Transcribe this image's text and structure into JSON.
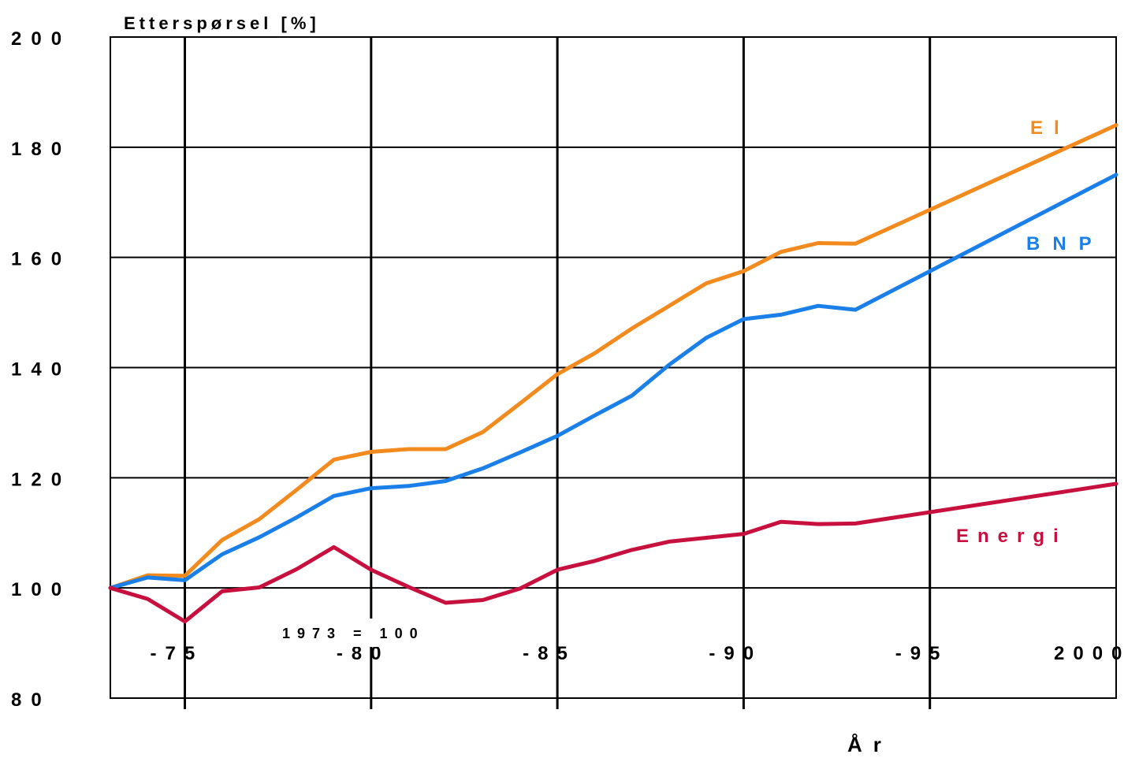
{
  "chart_data": {
    "type": "line",
    "title": "",
    "ylabel": "Etterspørsel [%]",
    "xlabel": "År",
    "annotation": "1973 = 100",
    "xlim": [
      1973,
      2000
    ],
    "ylim": [
      80,
      200
    ],
    "grid": true,
    "x_ticks": [
      1975,
      1980,
      1985,
      1990,
      1995,
      2000
    ],
    "x_tick_labels": [
      "-75",
      "-80",
      "-85",
      "-90",
      "-95",
      "2000"
    ],
    "y_ticks": [
      80,
      100,
      120,
      140,
      160,
      180,
      200
    ],
    "y_tick_labels": [
      "80",
      "100",
      "120",
      "140",
      "160",
      "180",
      "200"
    ],
    "x": [
      1973,
      1974,
      1975,
      1976,
      1977,
      1978,
      1979,
      1980,
      1981,
      1982,
      1983,
      1984,
      1985,
      1986,
      1987,
      1988,
      1989,
      1990,
      1991,
      1992,
      1993,
      2000
    ],
    "series": [
      {
        "name": "El",
        "color": "#F28A1E",
        "values": [
          100,
          102.3,
          102.2,
          108.7,
          112.5,
          117.8,
          123.3,
          124.7,
          125.2,
          125.2,
          128.3,
          133.5,
          138.8,
          142.6,
          147.1,
          151.2,
          155.3,
          157.5,
          161.0,
          162.6,
          162.5,
          184.0
        ]
      },
      {
        "name": "BNP",
        "color": "#1A7FE8",
        "values": [
          100,
          101.9,
          101.4,
          106.1,
          109.2,
          112.8,
          116.7,
          118.1,
          118.5,
          119.4,
          121.7,
          124.6,
          127.6,
          131.3,
          134.9,
          140.5,
          145.4,
          148.8,
          149.6,
          151.2,
          150.5,
          175.0
        ]
      },
      {
        "name": "Energi",
        "color": "#C8103E",
        "values": [
          100,
          98.0,
          93.9,
          99.4,
          100.1,
          103.4,
          107.4,
          103.3,
          100.2,
          97.3,
          97.8,
          99.9,
          103.3,
          104.9,
          106.9,
          108.4,
          109.1,
          109.8,
          112.0,
          111.6,
          111.7,
          118.9
        ]
      }
    ]
  }
}
